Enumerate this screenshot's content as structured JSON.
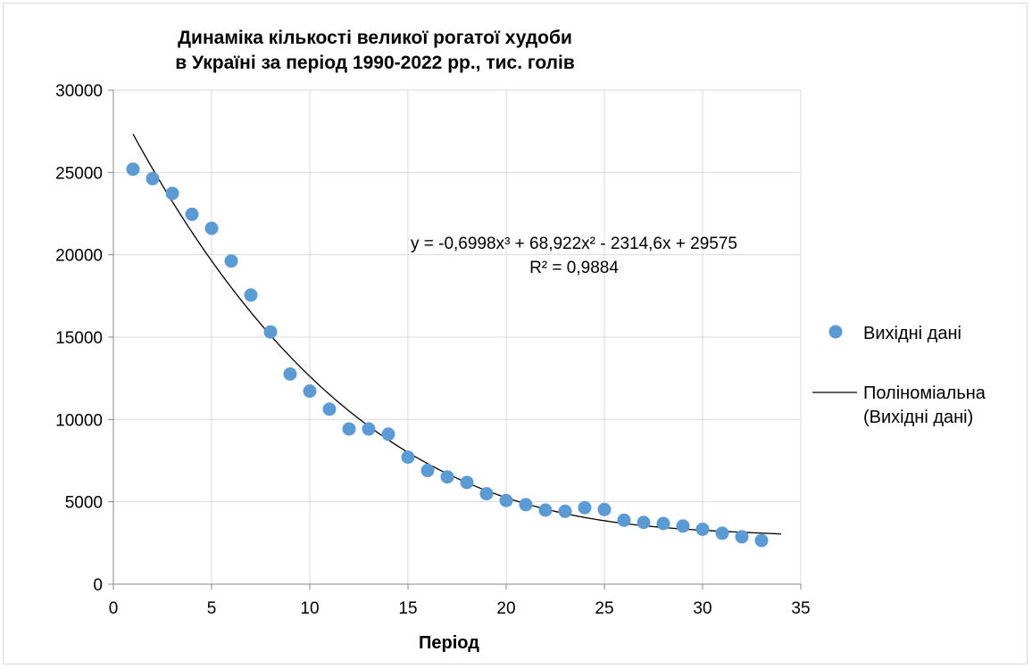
{
  "chart_data": {
    "type": "scatter",
    "title_lines": [
      "Динаміка кількості великої рогатої худоби",
      "в Україні за період 1990-2022 рр., тис. голів"
    ],
    "xlabel": "Період",
    "ylabel": "",
    "xlim": [
      0,
      35
    ],
    "ylim": [
      0,
      30000
    ],
    "x_ticks": [
      "0",
      "5",
      "10",
      "15",
      "20",
      "25",
      "30",
      "35"
    ],
    "y_ticks": [
      "0",
      "5000",
      "10000",
      "15000",
      "20000",
      "25000",
      "30000"
    ],
    "grid": true,
    "legend_position": "right",
    "series": [
      {
        "name": "Вихідні дані",
        "color": "#5b9bd5",
        "x": [
          1,
          2,
          3,
          4,
          5,
          6,
          7,
          8,
          9,
          10,
          11,
          12,
          13,
          14,
          15,
          16,
          17,
          18,
          19,
          20,
          21,
          22,
          23,
          24,
          25,
          26,
          27,
          28,
          29,
          30,
          31,
          32,
          33
        ],
        "y": [
          25195,
          24623,
          23728,
          22457,
          21607,
          19624,
          17557,
          15313,
          12759,
          11722,
          10627,
          9424,
          9421,
          9108,
          7712,
          6903,
          6514,
          6175,
          5491,
          5079,
          4826,
          4495,
          4425,
          4646,
          4534,
          3884,
          3750,
          3682,
          3531,
          3333,
          3092,
          2874,
          2650
        ]
      }
    ],
    "trendline": {
      "name": "Поліноміальна (Вихідні дані)",
      "name_lines": [
        "Поліноміальна",
        "(Вихідні дані)"
      ],
      "color": "#000000",
      "type": "polynomial",
      "coefficients": [
        -0.6998,
        68.922,
        -2314.6,
        29575
      ],
      "x_range": [
        1,
        34
      ],
      "equation_label": "y = -0,6998x³ + 68,922x² - 2314,6x + 29575",
      "r2_label": "R² = 0,9884"
    }
  }
}
